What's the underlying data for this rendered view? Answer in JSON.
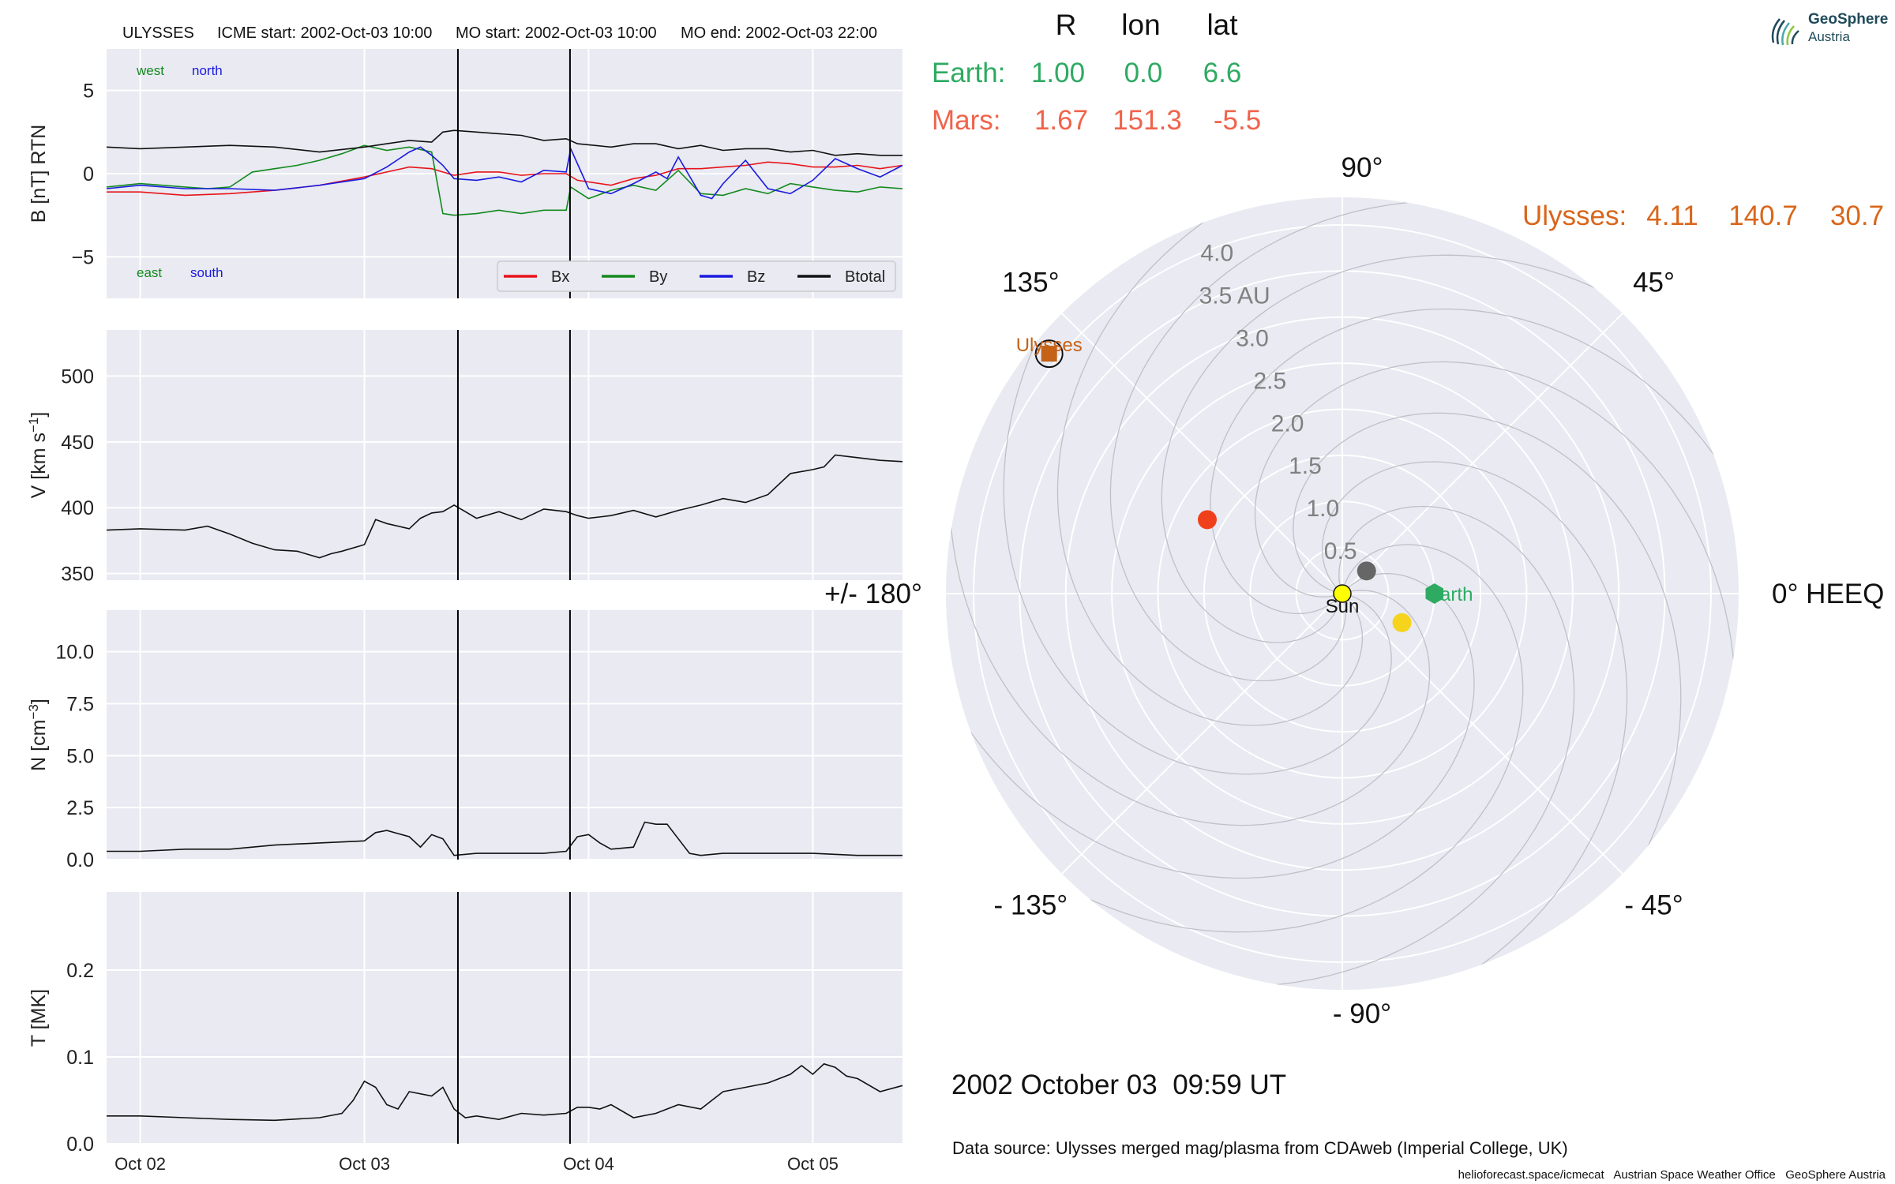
{
  "header": {
    "spacecraft": "ULYSSES",
    "icme_start": "ICME start: 2002-Oct-03 10:00",
    "mo_start": "MO start: 2002-Oct-03 10:00",
    "mo_end": "MO end: 2002-Oct-03 22:00"
  },
  "logo": {
    "line1": "GeoSphere",
    "line2": "Austria",
    "icon": "geosphere-logo-icon"
  },
  "table": {
    "cols": [
      "R",
      "lon",
      "lat"
    ],
    "rows": [
      {
        "label": "Earth:",
        "R": "1.00",
        "lon": "0.0",
        "lat": "6.6",
        "color": "#2eaa62"
      },
      {
        "label": "Mars:",
        "R": "1.67",
        "lon": "151.3",
        "lat": "-5.5",
        "color": "#f0634b"
      }
    ],
    "ulysses": {
      "label": "Ulysses:",
      "R": "4.11",
      "lon": "140.7",
      "lat": "30.7",
      "color": "#d9661b"
    }
  },
  "date_label": "2002 October 03  09:59 UT",
  "source_label": "Data source: Ulysses merged mag/plasma from CDAweb (Imperial College, UK)",
  "footer_label": "helioforecast.space/icmecat   Austrian Space Weather Office   GeoSphere Austria",
  "chart_data": [
    {
      "type": "line",
      "ylabel": "B [nT] RTN",
      "ylim": [
        -7.5,
        7.5
      ],
      "yticks": [
        -5,
        0,
        5
      ],
      "ytick_labels": [
        "−5",
        "0",
        "5"
      ],
      "xlim": [
        -0.15,
        3.4
      ],
      "xticks": [
        0,
        1,
        2,
        3
      ],
      "xtick_labels": [
        "Oct 02",
        "Oct 03",
        "Oct 04",
        "Oct 05"
      ],
      "vlines": [
        1.417,
        1.917
      ],
      "corner_labels": {
        "west": "west",
        "north": "north",
        "east": "east",
        "south": "south"
      },
      "legend": [
        "Bx",
        "By",
        "Bz",
        "Btotal"
      ],
      "legend_position": "lower-right",
      "series": [
        {
          "name": "Bx",
          "color": "#e8141a",
          "x": [
            -0.15,
            0,
            0.2,
            0.4,
            0.6,
            0.8,
            1.0,
            1.1,
            1.2,
            1.3,
            1.4,
            1.5,
            1.6,
            1.7,
            1.8,
            1.9,
            1.95,
            2.1,
            2.2,
            2.3,
            2.4,
            2.5,
            2.6,
            2.7,
            2.8,
            2.9,
            3.0,
            3.1,
            3.2,
            3.3,
            3.4
          ],
          "values": [
            -1.1,
            -1.1,
            -1.3,
            -1.2,
            -1.0,
            -0.7,
            -0.2,
            0.1,
            0.4,
            0.3,
            -0.1,
            0.1,
            0.1,
            -0.1,
            0.0,
            0.0,
            -0.4,
            -0.7,
            -0.3,
            -0.1,
            0.3,
            0.3,
            0.4,
            0.5,
            0.7,
            0.6,
            0.4,
            0.4,
            0.5,
            0.3,
            0.5
          ]
        },
        {
          "name": "By",
          "color": "#138a1e",
          "x": [
            -0.15,
            0,
            0.2,
            0.3,
            0.4,
            0.5,
            0.6,
            0.7,
            0.8,
            0.9,
            1.0,
            1.1,
            1.2,
            1.3,
            1.35,
            1.4,
            1.5,
            1.6,
            1.7,
            1.8,
            1.9,
            1.92,
            2.0,
            2.1,
            2.2,
            2.3,
            2.4,
            2.5,
            2.6,
            2.7,
            2.8,
            2.9,
            3.0,
            3.1,
            3.2,
            3.3,
            3.4
          ],
          "values": [
            -0.8,
            -0.6,
            -0.8,
            -0.9,
            -0.8,
            0.1,
            0.3,
            0.5,
            0.8,
            1.2,
            1.7,
            1.4,
            1.6,
            1.3,
            -2.4,
            -2.5,
            -2.4,
            -2.2,
            -2.4,
            -2.2,
            -2.2,
            -0.8,
            -1.5,
            -1.0,
            -0.7,
            -1.0,
            0.2,
            -1.2,
            -1.3,
            -0.9,
            -1.2,
            -0.6,
            -0.8,
            -1.0,
            -1.1,
            -0.8,
            -0.9
          ]
        },
        {
          "name": "Bz",
          "color": "#1a1ae0",
          "x": [
            -0.15,
            0,
            0.2,
            0.4,
            0.6,
            0.8,
            1.0,
            1.1,
            1.2,
            1.25,
            1.3,
            1.35,
            1.4,
            1.5,
            1.6,
            1.7,
            1.8,
            1.9,
            1.92,
            2.0,
            2.1,
            2.2,
            2.3,
            2.35,
            2.4,
            2.5,
            2.55,
            2.6,
            2.7,
            2.8,
            2.9,
            3.0,
            3.1,
            3.2,
            3.3,
            3.4
          ],
          "values": [
            -0.9,
            -0.7,
            -0.9,
            -0.9,
            -1.0,
            -0.7,
            -0.3,
            0.4,
            1.3,
            1.6,
            1.1,
            0.5,
            -0.3,
            -0.4,
            -0.2,
            -0.5,
            0.2,
            0.1,
            1.5,
            -0.9,
            -1.2,
            -0.6,
            0.1,
            -0.3,
            1.0,
            -1.3,
            -1.5,
            -0.6,
            0.8,
            -0.9,
            -1.2,
            -0.4,
            0.9,
            0.3,
            -0.2,
            0.5
          ]
        },
        {
          "name": "Btotal",
          "color": "#111111",
          "x": [
            -0.15,
            0,
            0.2,
            0.4,
            0.6,
            0.8,
            1.0,
            1.1,
            1.2,
            1.3,
            1.35,
            1.4,
            1.5,
            1.6,
            1.7,
            1.8,
            1.9,
            1.95,
            2.1,
            2.2,
            2.3,
            2.4,
            2.5,
            2.6,
            2.7,
            2.8,
            2.9,
            3.0,
            3.1,
            3.2,
            3.3,
            3.4
          ],
          "values": [
            1.6,
            1.5,
            1.6,
            1.7,
            1.6,
            1.3,
            1.6,
            1.8,
            2.0,
            1.9,
            2.5,
            2.6,
            2.5,
            2.4,
            2.3,
            2.0,
            2.1,
            1.8,
            1.6,
            1.8,
            1.8,
            1.5,
            1.7,
            1.4,
            1.5,
            1.5,
            1.3,
            1.4,
            1.1,
            1.2,
            1.1,
            1.1
          ]
        }
      ]
    },
    {
      "type": "line",
      "ylabel": "V [km s",
      "ylabel_sup": "−1",
      "ylabel_end": "]",
      "ylim": [
        345,
        535
      ],
      "yticks": [
        350,
        400,
        450,
        500
      ],
      "ytick_labels": [
        "350",
        "400",
        "450",
        "500"
      ],
      "xlim": [
        -0.15,
        3.4
      ],
      "xticks": [
        0,
        1,
        2,
        3
      ],
      "vlines": [
        1.417,
        1.917
      ],
      "series": [
        {
          "name": "V",
          "color": "#111111",
          "x": [
            -0.15,
            0,
            0.2,
            0.3,
            0.4,
            0.5,
            0.6,
            0.7,
            0.8,
            0.85,
            0.9,
            1.0,
            1.05,
            1.1,
            1.2,
            1.25,
            1.3,
            1.35,
            1.4,
            1.45,
            1.5,
            1.6,
            1.7,
            1.8,
            1.9,
            1.95,
            2.0,
            2.1,
            2.2,
            2.3,
            2.4,
            2.5,
            2.6,
            2.7,
            2.8,
            2.9,
            3.0,
            3.05,
            3.1,
            3.2,
            3.3,
            3.4
          ],
          "values": [
            383,
            384,
            383,
            386,
            380,
            373,
            368,
            367,
            362,
            365,
            367,
            372,
            391,
            388,
            384,
            392,
            396,
            397,
            402,
            397,
            392,
            397,
            391,
            399,
            397,
            394,
            392,
            394,
            398,
            393,
            398,
            402,
            407,
            404,
            410,
            426,
            429,
            431,
            440,
            438,
            436,
            435
          ]
        }
      ]
    },
    {
      "type": "line",
      "ylabel": "N [cm",
      "ylabel_sup": "−3",
      "ylabel_end": "]",
      "ylim": [
        0,
        12
      ],
      "yticks": [
        0,
        2.5,
        5,
        7.5,
        10
      ],
      "ytick_labels": [
        "0.0",
        "2.5",
        "5.0",
        "7.5",
        "10.0"
      ],
      "xlim": [
        -0.15,
        3.4
      ],
      "xticks": [
        0,
        1,
        2,
        3
      ],
      "vlines": [
        1.417,
        1.917
      ],
      "series": [
        {
          "name": "N",
          "color": "#111111",
          "x": [
            -0.15,
            0,
            0.2,
            0.4,
            0.6,
            0.8,
            1.0,
            1.05,
            1.1,
            1.2,
            1.25,
            1.3,
            1.35,
            1.4,
            1.5,
            1.6,
            1.7,
            1.8,
            1.9,
            1.95,
            2.0,
            2.05,
            2.1,
            2.2,
            2.25,
            2.3,
            2.35,
            2.4,
            2.45,
            2.5,
            2.6,
            2.8,
            3.0,
            3.2,
            3.4
          ],
          "values": [
            0.4,
            0.4,
            0.5,
            0.5,
            0.7,
            0.8,
            0.9,
            1.3,
            1.4,
            1.1,
            0.6,
            1.2,
            1.0,
            0.2,
            0.3,
            0.3,
            0.3,
            0.3,
            0.4,
            1.1,
            1.2,
            0.8,
            0.5,
            0.6,
            1.8,
            1.7,
            1.7,
            1.0,
            0.3,
            0.2,
            0.3,
            0.3,
            0.3,
            0.2,
            0.2
          ]
        }
      ]
    },
    {
      "type": "line",
      "ylabel": "T [MK]",
      "ylim": [
        0,
        0.29
      ],
      "yticks": [
        0,
        0.1,
        0.2
      ],
      "ytick_labels": [
        "0.0",
        "0.1",
        "0.2"
      ],
      "xlim": [
        -0.15,
        3.4
      ],
      "xticks": [
        0,
        1,
        2,
        3
      ],
      "xtick_labels": [
        "Oct 02",
        "Oct 03",
        "Oct 04",
        "Oct 05"
      ],
      "vlines": [
        1.417,
        1.917
      ],
      "series": [
        {
          "name": "T",
          "color": "#111111",
          "x": [
            -0.15,
            0,
            0.2,
            0.4,
            0.6,
            0.8,
            0.9,
            0.95,
            1.0,
            1.05,
            1.1,
            1.15,
            1.2,
            1.3,
            1.35,
            1.4,
            1.45,
            1.5,
            1.6,
            1.7,
            1.8,
            1.9,
            1.95,
            2.0,
            2.05,
            2.1,
            2.2,
            2.3,
            2.4,
            2.5,
            2.6,
            2.7,
            2.8,
            2.9,
            2.95,
            3.0,
            3.05,
            3.1,
            3.15,
            3.2,
            3.3,
            3.4
          ],
          "values": [
            0.032,
            0.032,
            0.03,
            0.028,
            0.027,
            0.03,
            0.035,
            0.05,
            0.072,
            0.065,
            0.045,
            0.04,
            0.06,
            0.055,
            0.065,
            0.04,
            0.03,
            0.032,
            0.028,
            0.035,
            0.033,
            0.035,
            0.042,
            0.042,
            0.04,
            0.045,
            0.03,
            0.035,
            0.045,
            0.04,
            0.06,
            0.065,
            0.07,
            0.08,
            0.09,
            0.08,
            0.092,
            0.088,
            0.078,
            0.075,
            0.06,
            0.067
          ]
        }
      ]
    },
    {
      "type": "polar",
      "r_ticks": [
        0.5,
        1.0,
        1.5,
        2.0,
        2.5,
        3.0,
        3.5,
        4.0
      ],
      "r_tick_labels": [
        "0.5",
        "1.0",
        "1.5",
        "2.0",
        "2.5",
        "3.0",
        "3.5 AU",
        "4.0"
      ],
      "r_max": 4.3,
      "angle_ticks": [
        0,
        45,
        90,
        135,
        180,
        -135,
        -90,
        -45
      ],
      "angle_labels": [
        "0° HEEQ",
        "45°",
        "90°",
        "135°",
        "+/- 180°",
        "- 135°",
        "- 90°",
        "- 45°"
      ],
      "bodies": [
        {
          "name": "Sun",
          "r": 0,
          "lon": 0,
          "color": "#ffff00",
          "marker": "circle",
          "label": "Sun"
        },
        {
          "name": "Earth",
          "r": 1.0,
          "lon": 0.0,
          "color": "#2eaa62",
          "marker": "hexagon",
          "label": "Earth"
        },
        {
          "name": "Mars",
          "r": 1.67,
          "lon": 151.3,
          "color": "#f0401b",
          "marker": "circle",
          "label": ""
        },
        {
          "name": "Ulysses",
          "r": 4.11,
          "lon": 140.7,
          "color": "#c46218",
          "marker": "square",
          "label": "Ulysses"
        },
        {
          "name": "Venus",
          "r": 0.72,
          "lon": -26,
          "color": "#f6d31d",
          "marker": "circle",
          "label": ""
        },
        {
          "name": "Mercury",
          "r": 0.36,
          "lon": 43,
          "color": "#666666",
          "marker": "circle",
          "label": ""
        }
      ]
    }
  ]
}
